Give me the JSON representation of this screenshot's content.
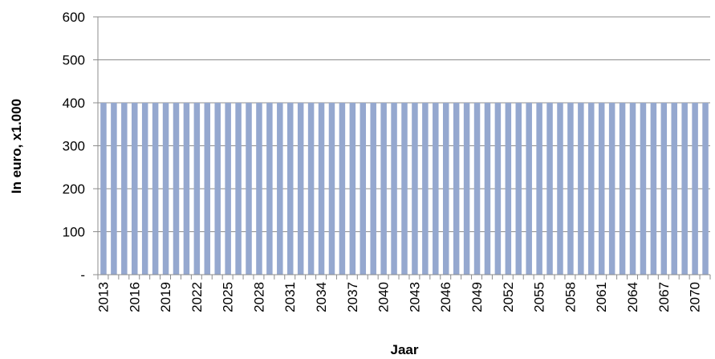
{
  "chart_data": {
    "type": "bar",
    "title": "",
    "xlabel": "Jaar",
    "ylabel": "In euro, x1.000",
    "ylim": [
      0,
      600
    ],
    "yticks": [
      "-",
      "100",
      "200",
      "300",
      "400",
      "500",
      "600"
    ],
    "grid": true,
    "legend": "none",
    "bar_color": "#95A8CF",
    "categories": [
      "2013",
      "2014",
      "2015",
      "2016",
      "2017",
      "2018",
      "2019",
      "2020",
      "2021",
      "2022",
      "2023",
      "2024",
      "2025",
      "2026",
      "2027",
      "2028",
      "2029",
      "2030",
      "2031",
      "2032",
      "2033",
      "2034",
      "2035",
      "2036",
      "2037",
      "2038",
      "2039",
      "2040",
      "2041",
      "2042",
      "2043",
      "2044",
      "2045",
      "2046",
      "2047",
      "2048",
      "2049",
      "2050",
      "2051",
      "2052",
      "2053",
      "2054",
      "2055",
      "2056",
      "2057",
      "2058",
      "2059",
      "2060",
      "2061",
      "2062",
      "2063",
      "2064",
      "2065",
      "2066",
      "2067",
      "2068",
      "2069",
      "2070",
      "2071"
    ],
    "tick_labels": [
      "2013",
      "2016",
      "2019",
      "2022",
      "2025",
      "2028",
      "2031",
      "2034",
      "2037",
      "2040",
      "2043",
      "2046",
      "2049",
      "2052",
      "2055",
      "2058",
      "2061",
      "2064",
      "2067",
      "2070"
    ],
    "values": [
      400,
      400,
      400,
      400,
      400,
      400,
      400,
      400,
      400,
      400,
      400,
      400,
      400,
      400,
      400,
      400,
      400,
      400,
      400,
      400,
      400,
      400,
      400,
      400,
      400,
      400,
      400,
      400,
      400,
      400,
      400,
      400,
      400,
      400,
      400,
      400,
      400,
      400,
      400,
      400,
      400,
      400,
      400,
      400,
      400,
      400,
      400,
      400,
      400,
      400,
      400,
      400,
      400,
      400,
      400,
      400,
      400,
      400,
      400
    ]
  }
}
